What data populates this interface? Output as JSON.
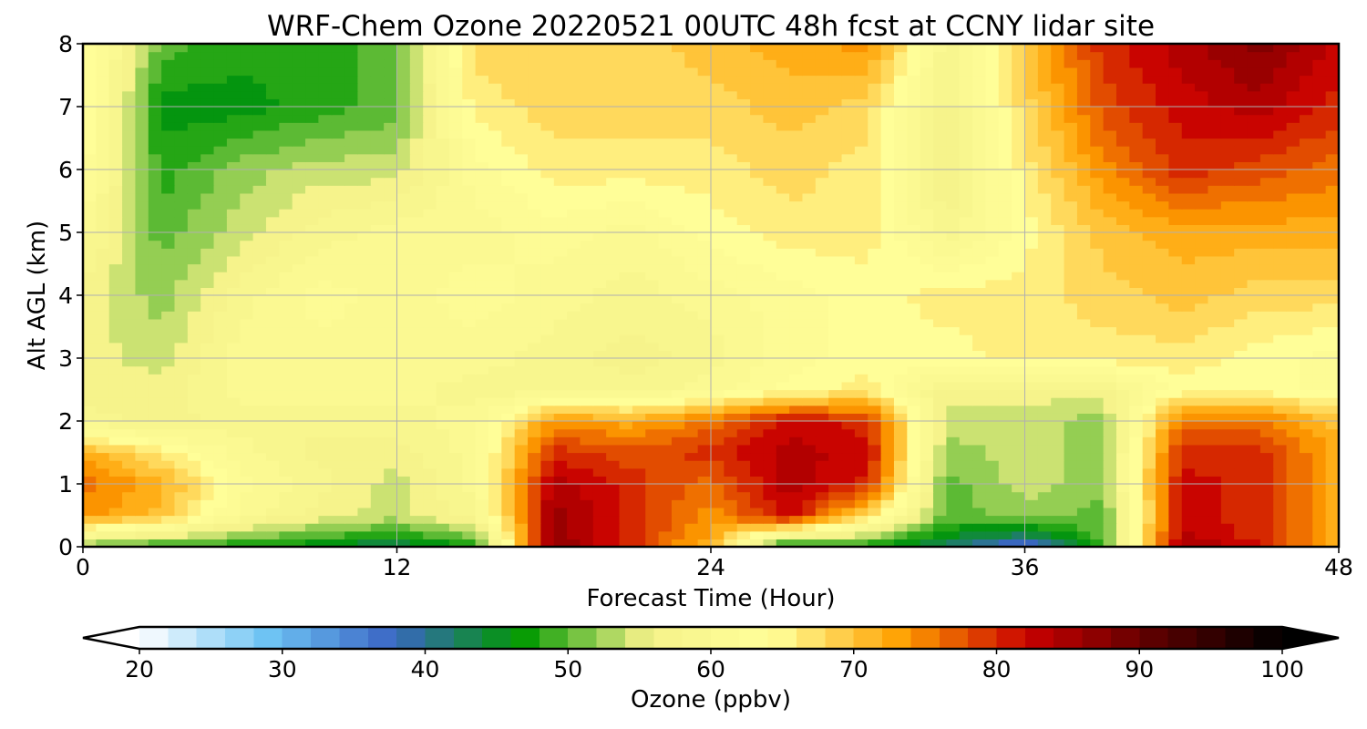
{
  "chart_data": {
    "type": "heatmap",
    "title": "WRF-Chem Ozone  20220521 00UTC 48h fcst at CCNY lidar site",
    "xlabel": "Forecast Time (Hour)",
    "ylabel": "Alt AGL (km)",
    "xlim": [
      0,
      48
    ],
    "ylim": [
      0,
      8
    ],
    "xticks": [
      "0",
      "12",
      "24",
      "36",
      "48"
    ],
    "yticks": [
      "0",
      "1",
      "2",
      "3",
      "4",
      "5",
      "6",
      "7",
      "8"
    ],
    "grid": true,
    "colorbar": {
      "label": "Ozone  (ppbv)",
      "min": 20,
      "max": 100,
      "step": 2,
      "ticks": [
        "20",
        "30",
        "40",
        "50",
        "60",
        "70",
        "80",
        "90",
        "100"
      ],
      "extend": "both",
      "colors": [
        "#ffffff",
        "#6fc4f4",
        "#3a66c4",
        "#009900",
        "#f6f28a",
        "#ffff99",
        "#ffa000",
        "#c80000",
        "#5a0000",
        "#000000"
      ]
    },
    "x": [
      0,
      3,
      6,
      9,
      12,
      15,
      18,
      21,
      24,
      27,
      30,
      33,
      36,
      39,
      42,
      45,
      48
    ],
    "y": [
      0,
      0.1,
      0.5,
      1,
      1.5,
      2,
      2.5,
      3,
      4,
      5,
      6,
      7,
      8
    ],
    "z": [
      [
        50,
        48,
        46,
        44,
        40,
        48,
        88,
        80,
        70,
        44,
        48,
        40,
        34,
        48,
        86,
        82,
        70
      ],
      [
        56,
        52,
        50,
        48,
        46,
        50,
        86,
        80,
        72,
        52,
        50,
        44,
        40,
        50,
        84,
        80,
        72
      ],
      [
        74,
        70,
        60,
        56,
        54,
        58,
        86,
        80,
        74,
        82,
        68,
        50,
        52,
        50,
        82,
        80,
        72
      ],
      [
        76,
        72,
        62,
        58,
        54,
        60,
        84,
        80,
        76,
        84,
        80,
        50,
        54,
        52,
        82,
        80,
        72
      ],
      [
        72,
        66,
        60,
        56,
        56,
        60,
        80,
        78,
        80,
        84,
        82,
        52,
        54,
        52,
        80,
        80,
        72
      ],
      [
        58,
        56,
        58,
        58,
        58,
        60,
        74,
        72,
        76,
        82,
        80,
        54,
        54,
        52,
        76,
        76,
        70
      ],
      [
        56,
        56,
        60,
        60,
        60,
        58,
        58,
        58,
        60,
        64,
        66,
        56,
        56,
        56,
        64,
        64,
        62
      ],
      [
        56,
        54,
        60,
        60,
        60,
        60,
        58,
        56,
        58,
        62,
        64,
        64,
        66,
        66,
        66,
        64,
        62
      ],
      [
        56,
        52,
        58,
        62,
        60,
        62,
        60,
        58,
        60,
        62,
        64,
        66,
        66,
        68,
        70,
        68,
        68
      ],
      [
        60,
        50,
        54,
        58,
        60,
        60,
        62,
        60,
        64,
        66,
        66,
        58,
        64,
        70,
        72,
        72,
        72
      ],
      [
        64,
        48,
        52,
        54,
        54,
        62,
        66,
        66,
        66,
        68,
        66,
        54,
        66,
        74,
        80,
        78,
        76
      ],
      [
        66,
        46,
        46,
        48,
        50,
        66,
        68,
        68,
        68,
        70,
        68,
        56,
        68,
        78,
        82,
        84,
        80
      ],
      [
        66,
        50,
        48,
        48,
        50,
        68,
        68,
        68,
        70,
        72,
        74,
        58,
        70,
        80,
        84,
        88,
        82
      ]
    ]
  }
}
